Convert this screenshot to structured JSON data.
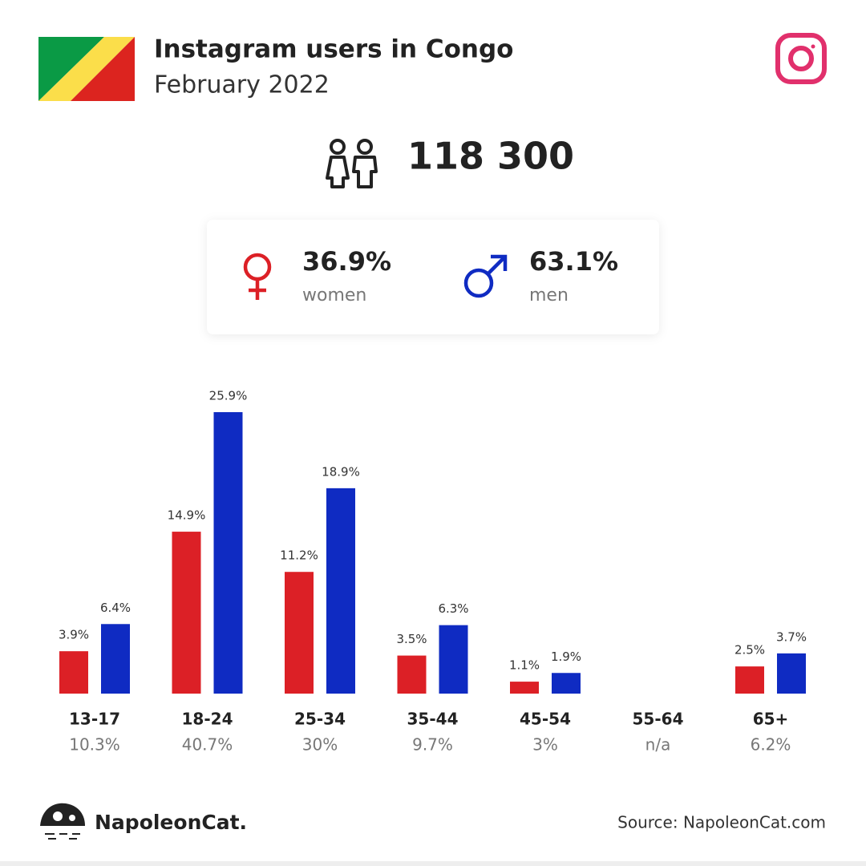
{
  "chart_data": {
    "type": "bar",
    "title": "Instagram users in Congo",
    "subtitle": "February 2022",
    "total_users": {
      "value": 118300,
      "label": "118 300"
    },
    "categories": [
      "13-17",
      "18-24",
      "25-34",
      "35-44",
      "45-54",
      "55-64",
      "65+"
    ],
    "totals": [
      10.3,
      40.7,
      30,
      9.7,
      3,
      null,
      6.2
    ],
    "total_labels": [
      "10.3%",
      "40.7%",
      "30%",
      "9.7%",
      "3%",
      "n/a",
      "6.2%"
    ],
    "series": [
      {
        "name": "women",
        "color": "#dc2026",
        "share": 36.9,
        "share_label": "36.9%",
        "values": [
          3.9,
          14.9,
          11.2,
          3.5,
          1.1,
          null,
          2.5
        ],
        "value_labels": [
          "3.9%",
          "14.9%",
          "11.2%",
          "3.5%",
          "1.1%",
          null,
          "2.5%"
        ]
      },
      {
        "name": "men",
        "color": "#0f2bc2",
        "share": 63.1,
        "share_label": "63.1%",
        "values": [
          6.4,
          25.9,
          18.9,
          6.3,
          1.9,
          null,
          3.7
        ],
        "value_labels": [
          "6.4%",
          "25.9%",
          "18.9%",
          "6.3%",
          "1.9%",
          null,
          "3.7%"
        ]
      }
    ],
    "brand": "NapoleonCat.",
    "source": "Source: NapoleonCat.com"
  }
}
